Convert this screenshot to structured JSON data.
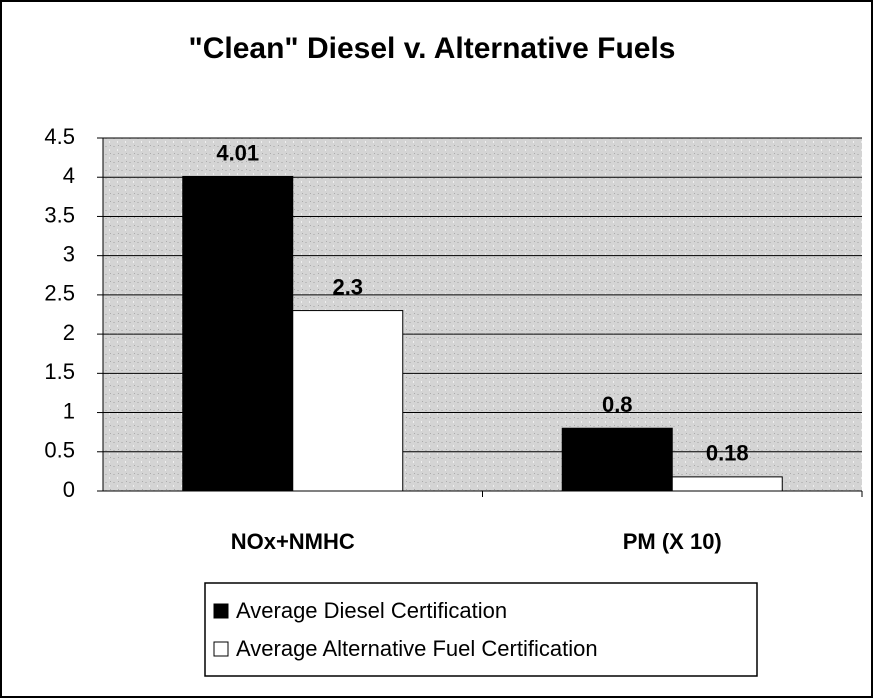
{
  "chart_data": {
    "type": "bar",
    "title": "\"Clean\" Diesel v. Alternative Fuels",
    "categories": [
      "NOx+NMHC",
      "PM (X 10)"
    ],
    "series": [
      {
        "name": "Average Diesel Certification",
        "color": "#000000",
        "values": [
          4.01,
          0.8
        ]
      },
      {
        "name": "Average Alternative Fuel Certification",
        "color": "#ffffff",
        "values": [
          2.3,
          0.18
        ]
      }
    ],
    "ylim": [
      0,
      4.5
    ],
    "yticks": [
      0,
      0.5,
      1,
      1.5,
      2,
      2.5,
      3,
      3.5,
      4,
      4.5
    ],
    "grid": true
  }
}
